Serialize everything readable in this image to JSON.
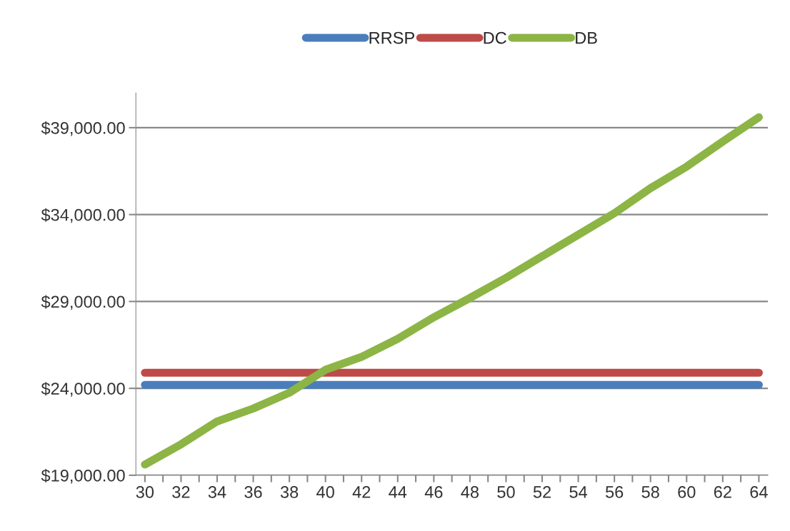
{
  "chart_data": {
    "type": "line",
    "x": [
      30,
      32,
      34,
      36,
      38,
      40,
      42,
      44,
      46,
      48,
      50,
      52,
      54,
      56,
      58,
      60,
      62,
      64
    ],
    "series": [
      {
        "name": "RRSP",
        "color": "#4a7ebb",
        "values": [
          24200,
          24200,
          24200,
          24200,
          24200,
          24200,
          24200,
          24200,
          24200,
          24200,
          24200,
          24200,
          24200,
          24200,
          24200,
          24200,
          24200,
          24200
        ]
      },
      {
        "name": "DC",
        "color": "#be4b48",
        "values": [
          24900,
          24900,
          24900,
          24900,
          24900,
          24900,
          24900,
          24900,
          24900,
          24900,
          24900,
          24900,
          24900,
          24900,
          24900,
          24900,
          24900,
          24900
        ]
      },
      {
        "name": "DB",
        "color": "#8cb545",
        "values": [
          19620,
          20780,
          22100,
          22840,
          23750,
          25070,
          25810,
          26850,
          28090,
          29200,
          30360,
          31600,
          32840,
          34080,
          35520,
          36760,
          38200,
          39600
        ]
      }
    ],
    "xlim": [
      29.5,
      64.5
    ],
    "xticks": [
      30,
      {
        "value": 31,
        "label": null
      },
      32,
      {
        "value": 33,
        "label": null
      },
      34,
      {
        "value": 35,
        "label": null
      },
      36,
      {
        "value": 37,
        "label": null
      },
      38,
      {
        "value": 39,
        "label": null
      },
      40,
      {
        "value": 41,
        "label": null
      },
      42,
      {
        "value": 43,
        "label": null
      },
      44,
      {
        "value": 45,
        "label": null
      },
      46,
      {
        "value": 47,
        "label": null
      },
      48,
      {
        "value": 49,
        "label": null
      },
      50,
      {
        "value": 51,
        "label": null
      },
      52,
      {
        "value": 53,
        "label": null
      },
      54,
      {
        "value": 55,
        "label": null
      },
      56,
      {
        "value": 57,
        "label": null
      },
      58,
      {
        "value": 59,
        "label": null
      },
      60,
      {
        "value": 61,
        "label": null
      },
      62,
      {
        "value": 63,
        "label": null
      },
      64
    ],
    "ylim": [
      19000,
      41000
    ],
    "yticks": [
      {
        "value": 19000,
        "label": "$19,000.00"
      },
      {
        "value": 24000,
        "label": "$24,000.00"
      },
      {
        "value": 29000,
        "label": "$29,000.00"
      },
      {
        "value": 34000,
        "label": "$34,000.00"
      },
      {
        "value": 39000,
        "label": "$39,000.00"
      }
    ],
    "grid": "y",
    "legend": "top",
    "marker": "none",
    "line_style": "solid"
  }
}
